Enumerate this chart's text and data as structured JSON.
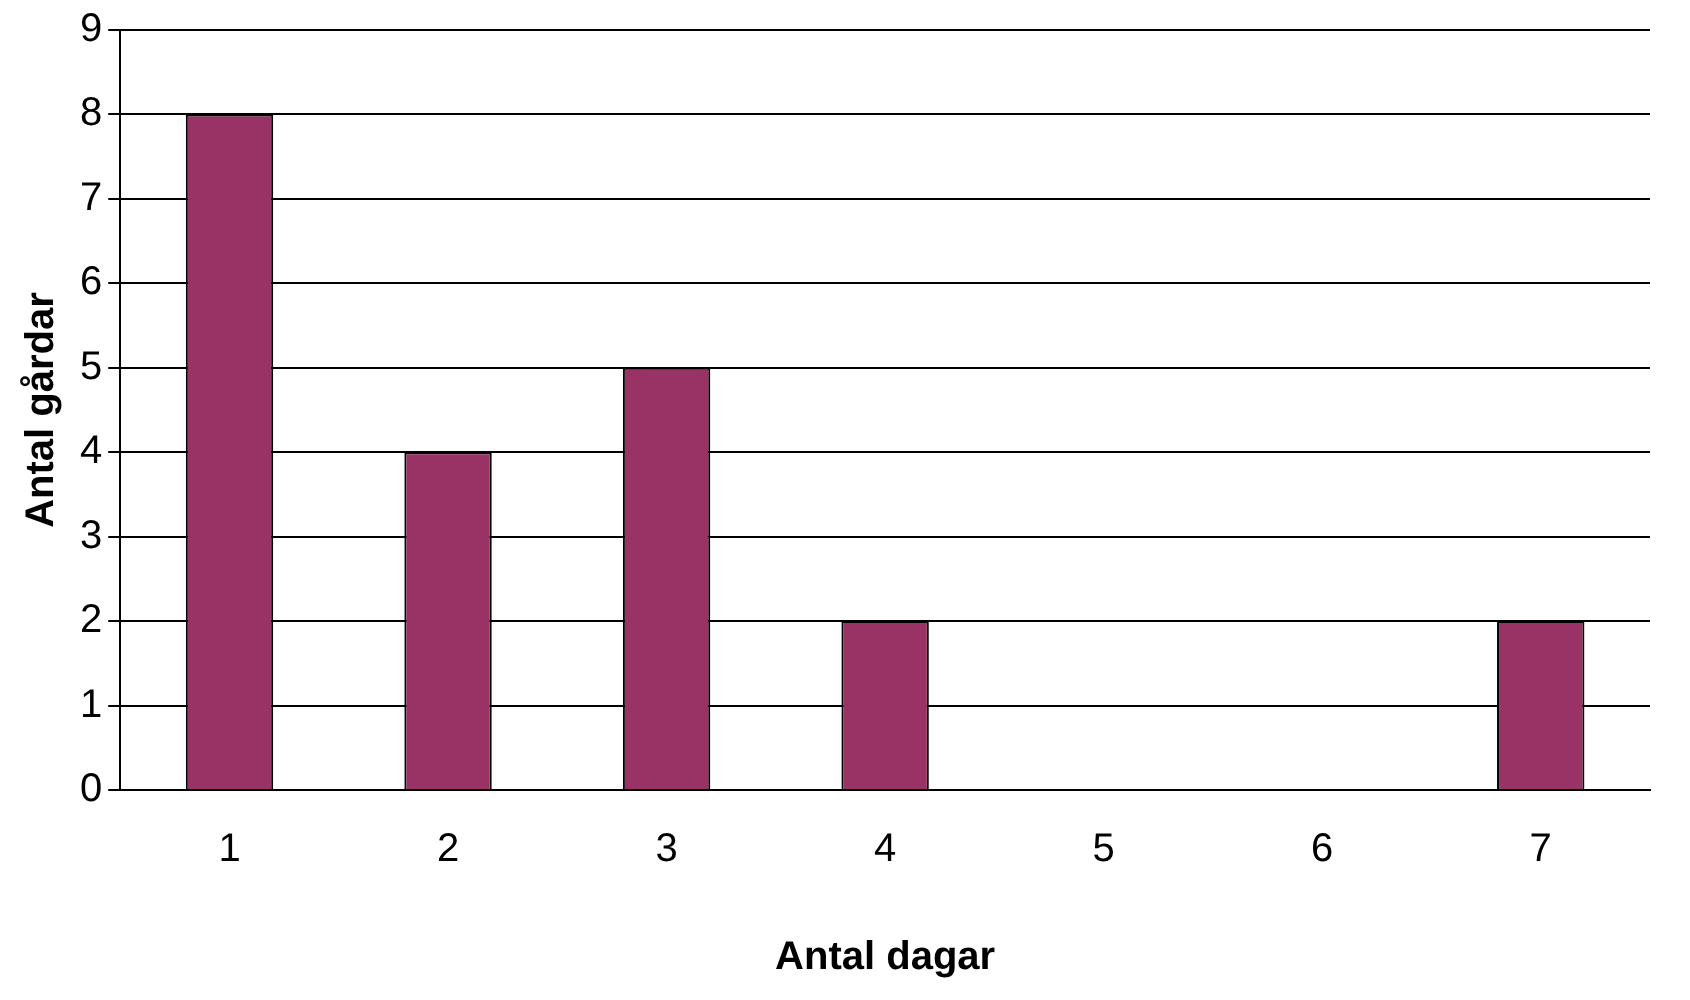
{
  "chart_data": {
    "type": "bar",
    "xlabel": "Antal dagar",
    "ylabel": "Antal gårdar",
    "categories": [
      "1",
      "2",
      "3",
      "4",
      "5",
      "6",
      "7"
    ],
    "values": [
      8,
      4,
      5,
      2,
      0,
      0,
      2
    ],
    "color": "#993366",
    "ylim": [
      0,
      9
    ],
    "yticks": [
      0,
      1,
      2,
      3,
      4,
      5,
      6,
      7,
      8,
      9
    ],
    "grid": "y",
    "legend": false
  }
}
